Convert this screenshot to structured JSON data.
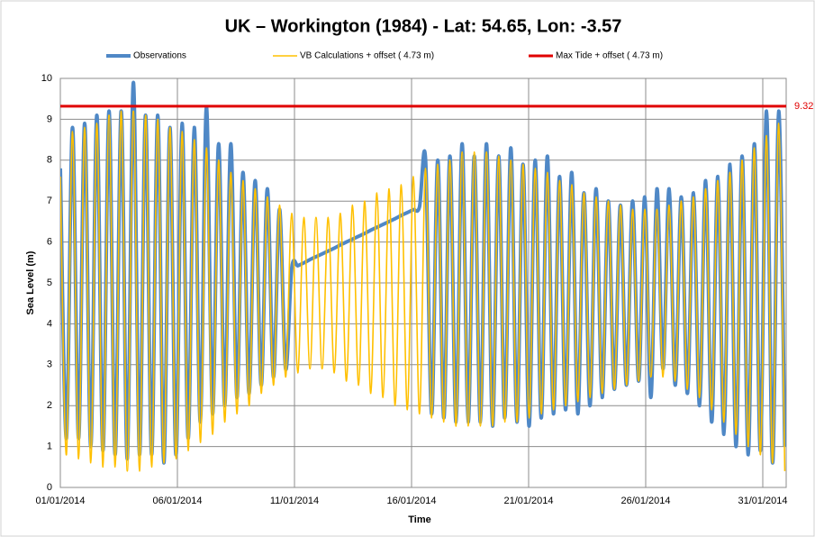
{
  "chart_data": {
    "type": "line",
    "title": "UK – Workington (1984) - Lat: 54.65, Lon: -3.57",
    "x_label": "Time",
    "y_label": "Sea Level (m)",
    "legend": "top",
    "grid": true,
    "xlim": [
      0,
      31
    ],
    "ylim": [
      0,
      10
    ],
    "xticks": [
      {
        "value": 0,
        "label": "01/01/2014"
      },
      {
        "value": 5,
        "label": "06/01/2014"
      },
      {
        "value": 10,
        "label": "11/01/2014"
      },
      {
        "value": 15,
        "label": "16/01/2014"
      },
      {
        "value": 20,
        "label": "21/01/2014"
      },
      {
        "value": 25,
        "label": "26/01/2014"
      },
      {
        "value": 30,
        "label": "31/01/2014"
      }
    ],
    "yticks": [
      0,
      1,
      2,
      3,
      4,
      5,
      6,
      7,
      8,
      9,
      10
    ],
    "x": [
      0,
      0.26,
      0.52,
      0.78,
      1.04,
      1.3,
      1.56,
      1.82,
      2.08,
      2.34,
      2.6,
      2.86,
      3.12,
      3.38,
      3.64,
      3.9,
      4.16,
      4.42,
      4.68,
      4.94,
      5.2,
      5.46,
      5.72,
      5.98,
      6.24,
      6.5,
      6.76,
      7.02,
      7.28,
      7.54,
      7.8,
      8.06,
      8.32,
      8.58,
      8.84,
      9.1,
      9.36,
      9.62,
      9.88,
      10.14,
      10.4,
      10.66,
      10.92,
      11.18,
      11.44,
      11.7,
      11.96,
      12.22,
      12.48,
      12.74,
      13,
      13.26,
      13.52,
      13.78,
      14.04,
      14.3,
      14.56,
      14.82,
      15.08,
      15.34,
      15.6,
      15.86,
      16.12,
      16.38,
      16.64,
      16.9,
      17.16,
      17.42,
      17.68,
      17.94,
      18.2,
      18.46,
      18.72,
      18.98,
      19.24,
      19.5,
      19.76,
      20.02,
      20.28,
      20.54,
      20.8,
      21.06,
      21.32,
      21.58,
      21.84,
      22.1,
      22.36,
      22.62,
      22.88,
      23.14,
      23.4,
      23.66,
      23.92,
      24.18,
      24.44,
      24.7,
      24.96,
      25.22,
      25.48,
      25.74,
      26,
      26.26,
      26.52,
      26.78,
      27.04,
      27.3,
      27.56,
      27.82,
      28.08,
      28.34,
      28.6,
      28.86,
      29.12,
      29.38,
      29.64,
      29.9,
      30.16,
      30.42,
      30.68,
      30.94
    ],
    "series": [
      {
        "name": "Observations",
        "color": "#4f88c6",
        "width": 4,
        "values": [
          7.8,
          1.2,
          8.8,
          1.2,
          8.9,
          1.0,
          9.1,
          0.9,
          9.2,
          0.8,
          9.2,
          0.7,
          9.9,
          0.8,
          9.1,
          0.8,
          9.1,
          0.6,
          8.8,
          0.8,
          8.9,
          1.2,
          8.8,
          1.6,
          9.3,
          1.8,
          8.4,
          2.0,
          8.4,
          2.2,
          7.7,
          2.3,
          7.5,
          2.5,
          7.3,
          2.7,
          6.8,
          2.9,
          5.35,
          5.42,
          5.49,
          5.57,
          5.64,
          5.71,
          5.78,
          5.85,
          5.93,
          6.0,
          6.07,
          6.14,
          6.21,
          6.29,
          6.36,
          6.43,
          6.5,
          6.57,
          6.65,
          6.72,
          6.79,
          6.86,
          8.0,
          1.8,
          8.0,
          1.7,
          8.1,
          1.6,
          8.4,
          1.6,
          8.1,
          1.6,
          8.4,
          1.5,
          8.1,
          1.7,
          8.3,
          1.6,
          7.9,
          1.5,
          8.0,
          1.7,
          8.1,
          1.8,
          7.6,
          1.9,
          7.7,
          1.8,
          7.2,
          2.0,
          7.3,
          2.2,
          7.0,
          2.4,
          6.9,
          2.5,
          7.0,
          2.6,
          7.1,
          2.2,
          7.3,
          2.9,
          7.3,
          2.5,
          7.1,
          2.3,
          7.2,
          2.0,
          7.5,
          1.6,
          7.6,
          1.3,
          7.9,
          1.0,
          8.1,
          0.8,
          8.4,
          0.9,
          9.2,
          0.6,
          9.2,
          1.0
        ]
      },
      {
        "name": "VB Calculations + offset ( 4.73 m)",
        "color": "#ffc000",
        "width": 1.6,
        "values": [
          7.6,
          0.8,
          8.7,
          0.7,
          8.8,
          0.6,
          8.9,
          0.5,
          9.1,
          0.5,
          9.2,
          0.4,
          9.2,
          0.4,
          9.1,
          0.5,
          9.0,
          0.6,
          8.8,
          0.7,
          8.7,
          0.9,
          8.5,
          1.1,
          8.3,
          1.3,
          8.0,
          1.6,
          7.7,
          1.8,
          7.5,
          2.0,
          7.3,
          2.3,
          7.1,
          2.5,
          6.9,
          2.7,
          6.7,
          2.8,
          6.6,
          2.9,
          6.6,
          2.9,
          6.6,
          2.8,
          6.7,
          2.6,
          6.9,
          2.5,
          7.0,
          2.3,
          7.2,
          2.2,
          7.3,
          2.0,
          7.4,
          1.9,
          7.6,
          1.8,
          7.8,
          1.7,
          7.9,
          1.6,
          8.0,
          1.5,
          8.2,
          1.5,
          8.2,
          1.5,
          8.2,
          1.5,
          8.1,
          1.6,
          8.0,
          1.6,
          7.9,
          1.7,
          7.8,
          1.8,
          7.7,
          1.9,
          7.5,
          2.0,
          7.4,
          2.1,
          7.2,
          2.2,
          7.1,
          2.3,
          7.0,
          2.4,
          6.9,
          2.5,
          6.8,
          2.6,
          6.8,
          2.7,
          6.8,
          2.7,
          6.9,
          2.6,
          7.0,
          2.4,
          7.1,
          2.2,
          7.3,
          1.9,
          7.5,
          1.6,
          7.7,
          1.3,
          8.0,
          1.0,
          8.3,
          0.8,
          8.6,
          0.6,
          8.9,
          0.4
        ]
      }
    ],
    "max_tide": {
      "name": "Max Tide + offset ( 4.73 m)",
      "color": "#e00000",
      "value": 9.32
    }
  }
}
